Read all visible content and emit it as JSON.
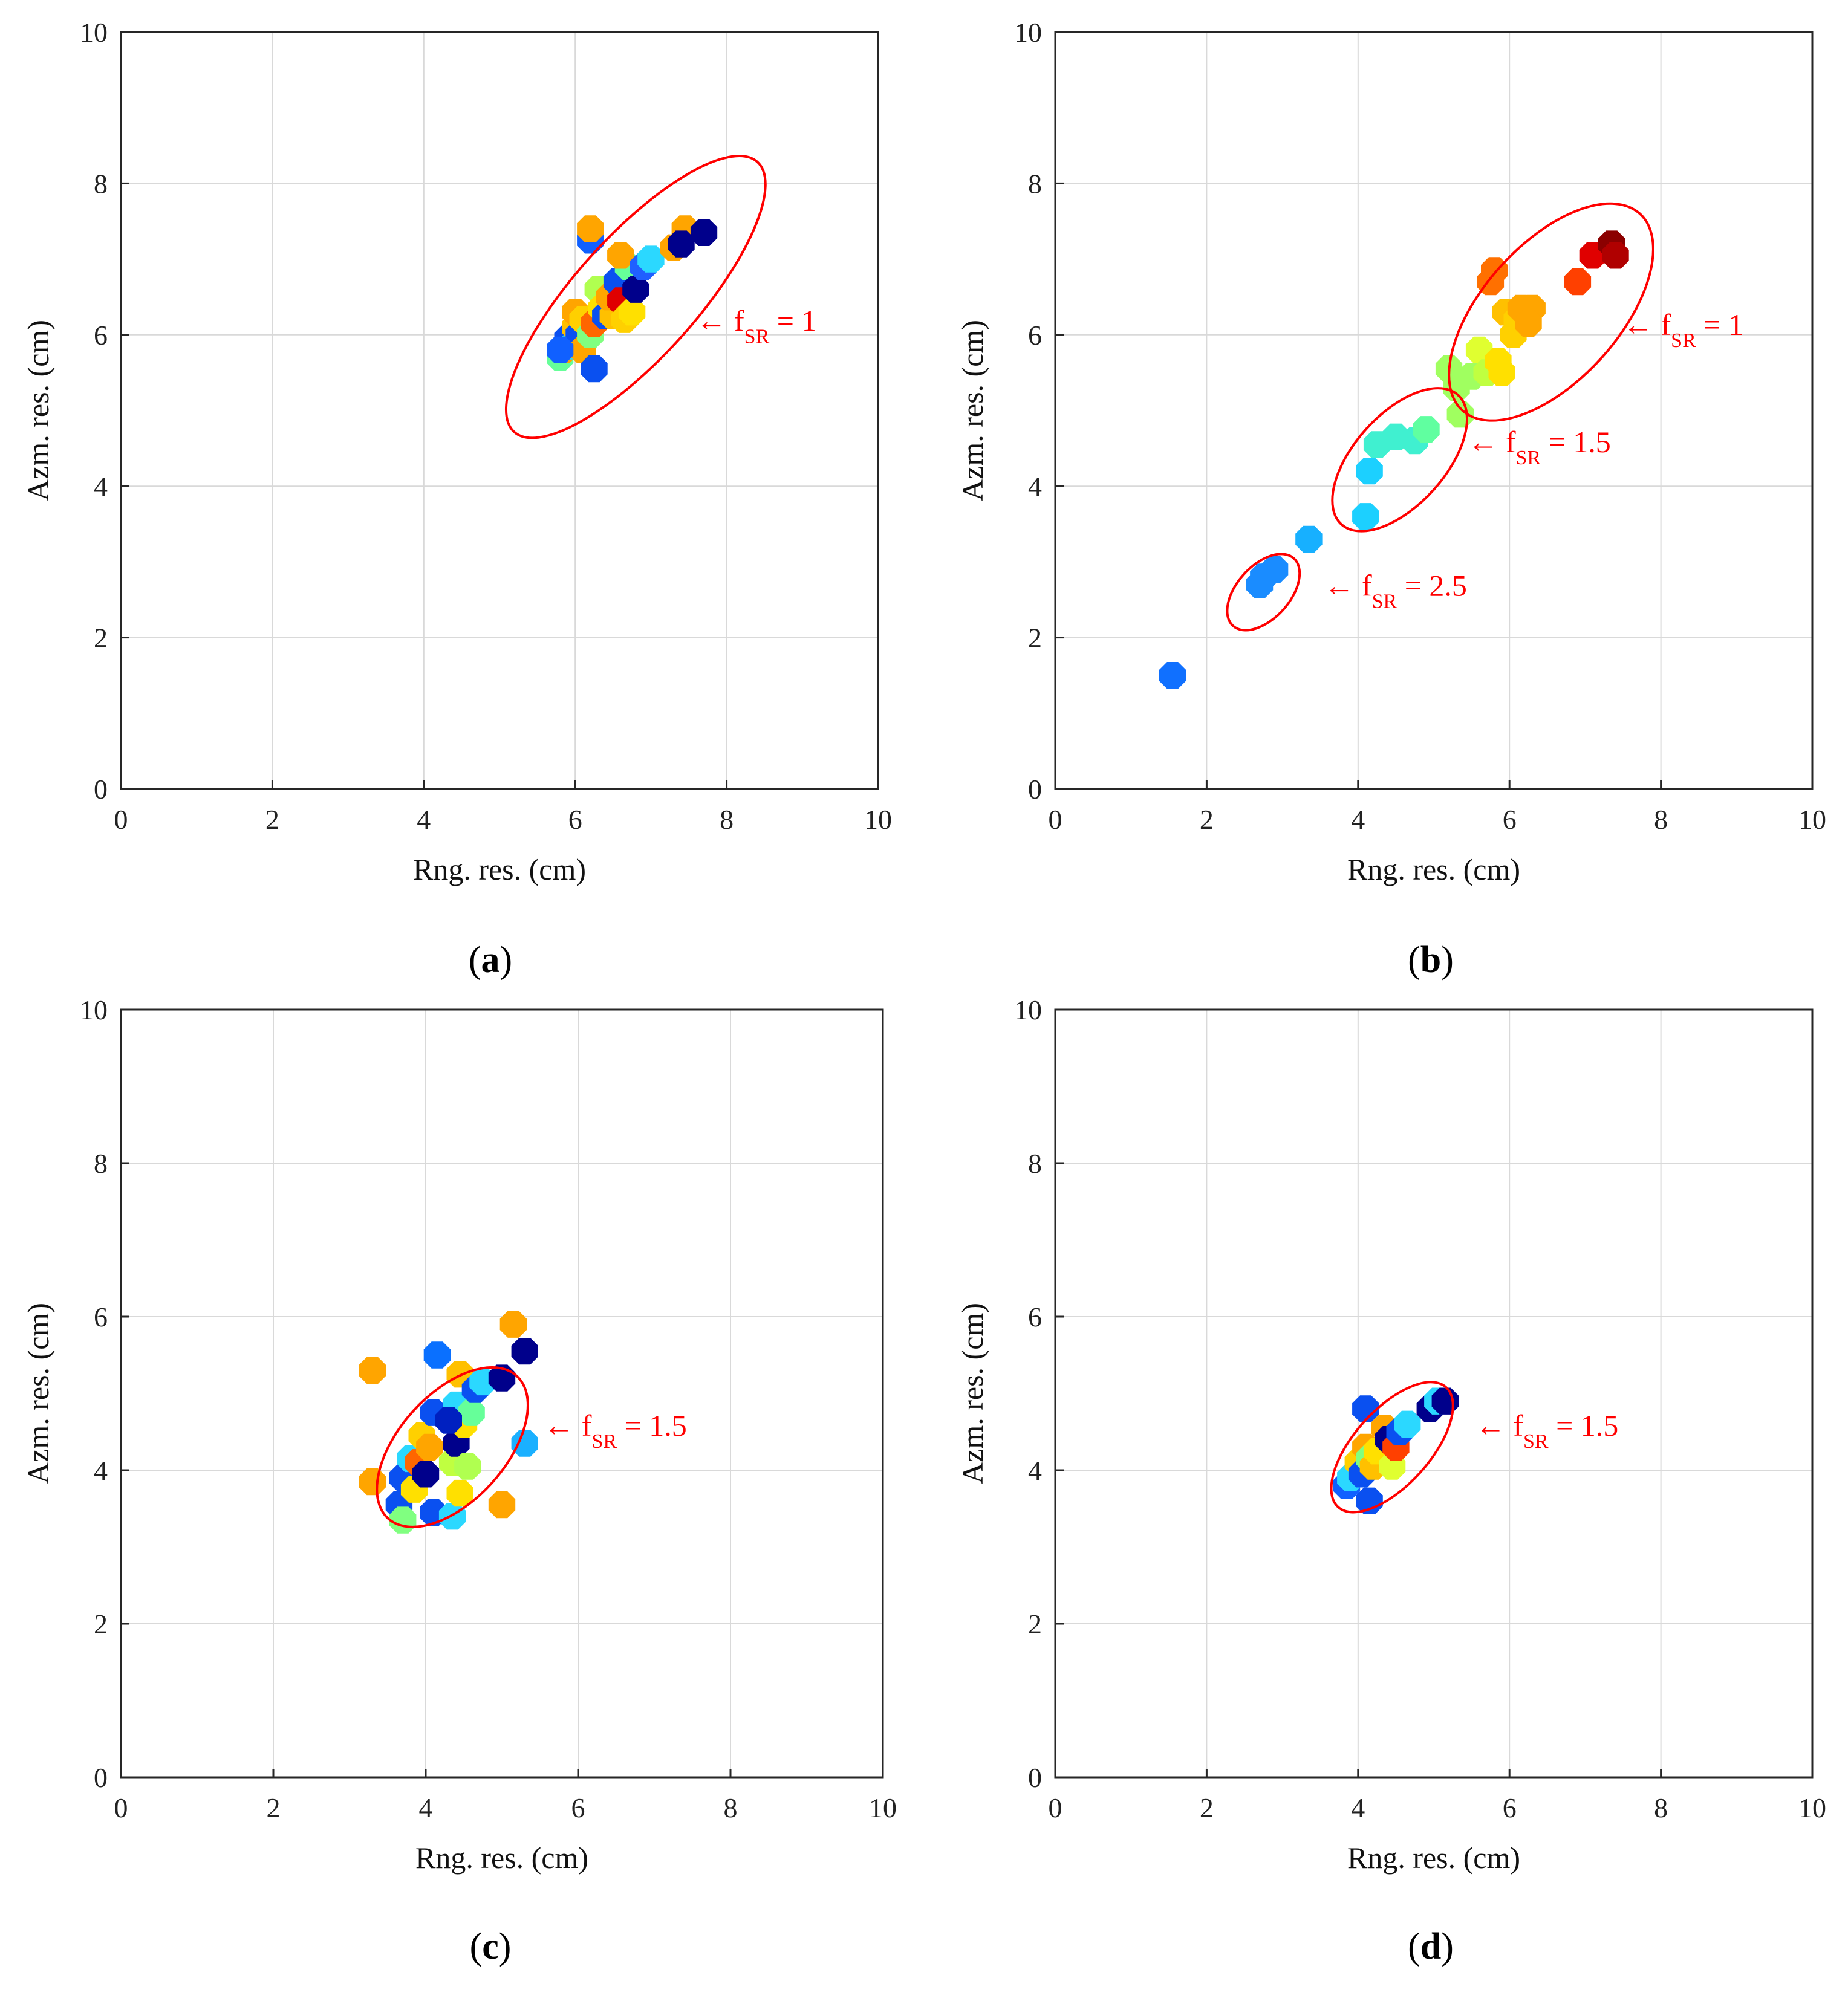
{
  "chart_data": [
    {
      "panel": "a",
      "type": "scatter",
      "caption": "a",
      "xlabel": "Rng. res. (cm)",
      "ylabel": "Azm. res. (cm)",
      "xlim": [
        0,
        10
      ],
      "ylim": [
        0,
        10
      ],
      "xticks": [
        "0",
        "2",
        "4",
        "6",
        "8",
        "10"
      ],
      "yticks": [
        "0",
        "2",
        "4",
        "6",
        "8",
        "10"
      ],
      "grid": true,
      "points": [
        {
          "x": 5.8,
          "y": 5.7,
          "c": "#66ff99"
        },
        {
          "x": 5.85,
          "y": 5.8,
          "c": "#ffa500"
        },
        {
          "x": 5.9,
          "y": 5.95,
          "c": "#0a50f0"
        },
        {
          "x": 5.95,
          "y": 5.85,
          "c": "#2bd8ff"
        },
        {
          "x": 6.0,
          "y": 6.1,
          "c": "#ffc000"
        },
        {
          "x": 6.0,
          "y": 6.3,
          "c": "#ffa500"
        },
        {
          "x": 6.05,
          "y": 6.0,
          "c": "#0a50f0"
        },
        {
          "x": 6.1,
          "y": 6.2,
          "c": "#ffd000"
        },
        {
          "x": 6.1,
          "y": 5.8,
          "c": "#ffa500"
        },
        {
          "x": 6.2,
          "y": 6.0,
          "c": "#80ff80"
        },
        {
          "x": 6.25,
          "y": 6.15,
          "c": "#ff6600"
        },
        {
          "x": 6.3,
          "y": 6.6,
          "c": "#b0ff50"
        },
        {
          "x": 6.35,
          "y": 6.35,
          "c": "#ffe000"
        },
        {
          "x": 6.4,
          "y": 6.25,
          "c": "#0a50f0"
        },
        {
          "x": 6.5,
          "y": 6.25,
          "c": "#ffc000"
        },
        {
          "x": 6.45,
          "y": 6.5,
          "c": "#ffa500"
        },
        {
          "x": 6.55,
          "y": 6.7,
          "c": "#0a50f0"
        },
        {
          "x": 6.6,
          "y": 6.45,
          "c": "#e00000"
        },
        {
          "x": 6.65,
          "y": 6.2,
          "c": "#ffd000"
        },
        {
          "x": 6.7,
          "y": 6.9,
          "c": "#66ff99"
        },
        {
          "x": 6.75,
          "y": 6.3,
          "c": "#ffe000"
        },
        {
          "x": 6.8,
          "y": 6.6,
          "c": "#00008b"
        },
        {
          "x": 6.6,
          "y": 7.05,
          "c": "#ffa500"
        },
        {
          "x": 6.9,
          "y": 6.9,
          "c": "#2060ff"
        },
        {
          "x": 7.0,
          "y": 7.0,
          "c": "#2bd8ff"
        },
        {
          "x": 6.2,
          "y": 7.25,
          "c": "#1060ff"
        },
        {
          "x": 6.2,
          "y": 7.4,
          "c": "#ffa500"
        },
        {
          "x": 7.3,
          "y": 7.15,
          "c": "#ffa500"
        },
        {
          "x": 7.45,
          "y": 7.4,
          "c": "#ffa500"
        },
        {
          "x": 7.4,
          "y": 7.2,
          "c": "#00008b"
        },
        {
          "x": 7.7,
          "y": 7.35,
          "c": "#00008b"
        },
        {
          "x": 6.25,
          "y": 5.55,
          "c": "#0a50f0"
        },
        {
          "x": 5.8,
          "y": 5.8,
          "c": "#1060ff"
        }
      ],
      "ellipses": [
        {
          "cx": 6.8,
          "cy": 6.5,
          "rx": 0.8,
          "ry": 2.4,
          "angle": 42
        }
      ],
      "annotations": [
        {
          "x": 7.6,
          "y": 6.05,
          "arrow": "←",
          "base": "f",
          "sub": "SR",
          "rest": " = 1"
        }
      ]
    },
    {
      "panel": "b",
      "type": "scatter",
      "caption": "b",
      "xlabel": "Rng. res. (cm)",
      "ylabel": "Azm. res. (cm)",
      "xlim": [
        0,
        10
      ],
      "ylim": [
        0,
        10
      ],
      "xticks": [
        "0",
        "2",
        "4",
        "6",
        "8",
        "10"
      ],
      "yticks": [
        "0",
        "2",
        "4",
        "6",
        "8",
        "10"
      ],
      "grid": true,
      "points": [
        {
          "x": 1.55,
          "y": 1.5,
          "c": "#1070ff"
        },
        {
          "x": 2.7,
          "y": 2.7,
          "c": "#1a8cff"
        },
        {
          "x": 2.75,
          "y": 2.8,
          "c": "#1a8cff"
        },
        {
          "x": 2.9,
          "y": 2.9,
          "c": "#1a8cff"
        },
        {
          "x": 3.35,
          "y": 3.3,
          "c": "#17b0ff"
        },
        {
          "x": 4.1,
          "y": 3.6,
          "c": "#1cd0ff"
        },
        {
          "x": 4.15,
          "y": 4.2,
          "c": "#1cd0ff"
        },
        {
          "x": 4.25,
          "y": 4.55,
          "c": "#40f0d0"
        },
        {
          "x": 4.5,
          "y": 4.65,
          "c": "#40f0d0"
        },
        {
          "x": 4.75,
          "y": 4.6,
          "c": "#40f0d0"
        },
        {
          "x": 4.9,
          "y": 4.75,
          "c": "#60ffa0"
        },
        {
          "x": 5.2,
          "y": 5.55,
          "c": "#a0ff60"
        },
        {
          "x": 5.3,
          "y": 5.3,
          "c": "#a0ff60"
        },
        {
          "x": 5.35,
          "y": 4.95,
          "c": "#a0ff60"
        },
        {
          "x": 5.5,
          "y": 5.45,
          "c": "#a0ff60"
        },
        {
          "x": 5.6,
          "y": 5.8,
          "c": "#e0ff30"
        },
        {
          "x": 5.7,
          "y": 5.5,
          "c": "#c0ff40"
        },
        {
          "x": 5.85,
          "y": 5.65,
          "c": "#ffe000"
        },
        {
          "x": 5.9,
          "y": 5.5,
          "c": "#ffe000"
        },
        {
          "x": 5.95,
          "y": 6.3,
          "c": "#ffc000"
        },
        {
          "x": 6.05,
          "y": 6.0,
          "c": "#ffd000"
        },
        {
          "x": 6.1,
          "y": 6.2,
          "c": "#ffd000"
        },
        {
          "x": 6.15,
          "y": 6.35,
          "c": "#ffa500"
        },
        {
          "x": 6.3,
          "y": 6.35,
          "c": "#ffa500"
        },
        {
          "x": 6.25,
          "y": 6.15,
          "c": "#ffa500"
        },
        {
          "x": 5.75,
          "y": 6.7,
          "c": "#ff7000"
        },
        {
          "x": 5.8,
          "y": 6.85,
          "c": "#ff7000"
        },
        {
          "x": 6.9,
          "y": 6.7,
          "c": "#ff4000"
        },
        {
          "x": 7.1,
          "y": 7.05,
          "c": "#e00000"
        },
        {
          "x": 7.35,
          "y": 7.2,
          "c": "#8b0000"
        },
        {
          "x": 7.4,
          "y": 7.05,
          "c": "#b00000"
        }
      ],
      "ellipses": [
        {
          "cx": 6.55,
          "cy": 6.3,
          "rx": 0.9,
          "ry": 1.75,
          "angle": 42
        },
        {
          "cx": 4.55,
          "cy": 4.35,
          "rx": 0.6,
          "ry": 1.15,
          "angle": 42
        },
        {
          "cx": 2.75,
          "cy": 2.6,
          "rx": 0.35,
          "ry": 0.6,
          "angle": 42
        }
      ],
      "annotations": [
        {
          "x": 7.5,
          "y": 6.0,
          "arrow": "←",
          "base": "f",
          "sub": "SR",
          "rest": " = 1"
        },
        {
          "x": 5.45,
          "y": 4.45,
          "arrow": "←",
          "base": "f",
          "sub": "SR",
          "rest": " = 1.5"
        },
        {
          "x": 3.55,
          "y": 2.55,
          "arrow": "←",
          "base": "f",
          "sub": "SR",
          "rest": " = 2.5"
        }
      ]
    },
    {
      "panel": "c",
      "type": "scatter",
      "caption": "c",
      "xlabel": "Rng. res. (cm)",
      "ylabel": "Azm. res. (cm)",
      "xlim": [
        0,
        10
      ],
      "ylim": [
        0,
        10
      ],
      "xticks": [
        "0",
        "2",
        "4",
        "6",
        "8",
        "10"
      ],
      "yticks": [
        "0",
        "2",
        "4",
        "6",
        "8",
        "10"
      ],
      "grid": true,
      "points": [
        {
          "x": 3.3,
          "y": 5.3,
          "c": "#ffa500"
        },
        {
          "x": 3.3,
          "y": 3.85,
          "c": "#ffa500"
        },
        {
          "x": 3.65,
          "y": 3.55,
          "c": "#0a50f0"
        },
        {
          "x": 3.7,
          "y": 3.35,
          "c": "#80ff80"
        },
        {
          "x": 3.7,
          "y": 3.9,
          "c": "#0a50f0"
        },
        {
          "x": 3.8,
          "y": 4.15,
          "c": "#2bd8ff"
        },
        {
          "x": 3.85,
          "y": 3.75,
          "c": "#ffe000"
        },
        {
          "x": 3.9,
          "y": 4.1,
          "c": "#ff6600"
        },
        {
          "x": 3.95,
          "y": 4.45,
          "c": "#ffd000"
        },
        {
          "x": 4.0,
          "y": 3.95,
          "c": "#00008b"
        },
        {
          "x": 4.05,
          "y": 4.3,
          "c": "#ffa500"
        },
        {
          "x": 4.1,
          "y": 3.45,
          "c": "#0a50f0"
        },
        {
          "x": 4.1,
          "y": 4.75,
          "c": "#0a50f0"
        },
        {
          "x": 4.15,
          "y": 5.5,
          "c": "#0a70ff"
        },
        {
          "x": 4.3,
          "y": 4.65,
          "c": "#2060ff"
        },
        {
          "x": 4.35,
          "y": 4.1,
          "c": "#c0ff40"
        },
        {
          "x": 4.35,
          "y": 3.4,
          "c": "#2bd8ff"
        },
        {
          "x": 4.4,
          "y": 4.85,
          "c": "#2bd8ff"
        },
        {
          "x": 4.4,
          "y": 4.35,
          "c": "#00008b"
        },
        {
          "x": 4.45,
          "y": 3.7,
          "c": "#ffe000"
        },
        {
          "x": 4.45,
          "y": 5.25,
          "c": "#ffc000"
        },
        {
          "x": 4.5,
          "y": 4.6,
          "c": "#ffe000"
        },
        {
          "x": 4.55,
          "y": 4.05,
          "c": "#b0ff50"
        },
        {
          "x": 4.6,
          "y": 4.75,
          "c": "#66ff99"
        },
        {
          "x": 4.65,
          "y": 5.05,
          "c": "#0a50f0"
        },
        {
          "x": 4.75,
          "y": 5.15,
          "c": "#2bd8ff"
        },
        {
          "x": 5.0,
          "y": 5.2,
          "c": "#00008b"
        },
        {
          "x": 5.0,
          "y": 3.55,
          "c": "#ffa500"
        },
        {
          "x": 5.15,
          "y": 5.9,
          "c": "#ffa500"
        },
        {
          "x": 5.3,
          "y": 5.55,
          "c": "#00008b"
        },
        {
          "x": 5.3,
          "y": 4.35,
          "c": "#1ab0ff"
        },
        {
          "x": 4.3,
          "y": 4.65,
          "c": "#0020c0"
        }
      ],
      "ellipses": [
        {
          "cx": 4.35,
          "cy": 4.3,
          "rx": 0.7,
          "ry": 1.25,
          "angle": 42
        }
      ],
      "annotations": [
        {
          "x": 5.55,
          "y": 4.45,
          "arrow": "←",
          "base": "f",
          "sub": "SR",
          "rest": " = 1.5"
        }
      ]
    },
    {
      "panel": "d",
      "type": "scatter",
      "caption": "d",
      "xlabel": "Rng. res. (cm)",
      "ylabel": "Azm. res. (cm)",
      "xlim": [
        0,
        10
      ],
      "ylim": [
        0,
        10
      ],
      "xticks": [
        "0",
        "2",
        "4",
        "6",
        "8",
        "10"
      ],
      "yticks": [
        "0",
        "2",
        "4",
        "6",
        "8",
        "10"
      ],
      "grid": true,
      "points": [
        {
          "x": 3.85,
          "y": 3.8,
          "c": "#1060ff"
        },
        {
          "x": 3.9,
          "y": 3.9,
          "c": "#2bd8ff"
        },
        {
          "x": 4.0,
          "y": 4.1,
          "c": "#ffd000"
        },
        {
          "x": 4.05,
          "y": 3.95,
          "c": "#0a50f0"
        },
        {
          "x": 4.1,
          "y": 4.8,
          "c": "#0a50f0"
        },
        {
          "x": 4.1,
          "y": 4.3,
          "c": "#ffa500"
        },
        {
          "x": 4.15,
          "y": 4.15,
          "c": "#80ff80"
        },
        {
          "x": 4.2,
          "y": 4.05,
          "c": "#ffc000"
        },
        {
          "x": 4.15,
          "y": 3.6,
          "c": "#0a50f0"
        },
        {
          "x": 4.25,
          "y": 4.25,
          "c": "#ffe000"
        },
        {
          "x": 4.35,
          "y": 4.55,
          "c": "#ffa500"
        },
        {
          "x": 4.4,
          "y": 4.4,
          "c": "#00008b"
        },
        {
          "x": 4.45,
          "y": 4.05,
          "c": "#e0ff30"
        },
        {
          "x": 4.5,
          "y": 4.3,
          "c": "#ff4000"
        },
        {
          "x": 4.55,
          "y": 4.5,
          "c": "#0a50f0"
        },
        {
          "x": 4.65,
          "y": 4.6,
          "c": "#2bd8ff"
        },
        {
          "x": 4.95,
          "y": 4.8,
          "c": "#00008b"
        },
        {
          "x": 5.05,
          "y": 4.9,
          "c": "#2bd8ff"
        },
        {
          "x": 5.15,
          "y": 4.9,
          "c": "#00008b"
        }
      ],
      "ellipses": [
        {
          "cx": 4.45,
          "cy": 4.3,
          "rx": 0.5,
          "ry": 1.05,
          "angle": 42
        }
      ],
      "annotations": [
        {
          "x": 5.55,
          "y": 4.45,
          "arrow": "←",
          "base": "f",
          "sub": "SR",
          "rest": " = 1.5"
        }
      ]
    }
  ],
  "colors": {
    "ellipse": "#ff0000",
    "annotation": "#ff0000",
    "grid": "#d9d9d9",
    "axis": "#262626"
  }
}
